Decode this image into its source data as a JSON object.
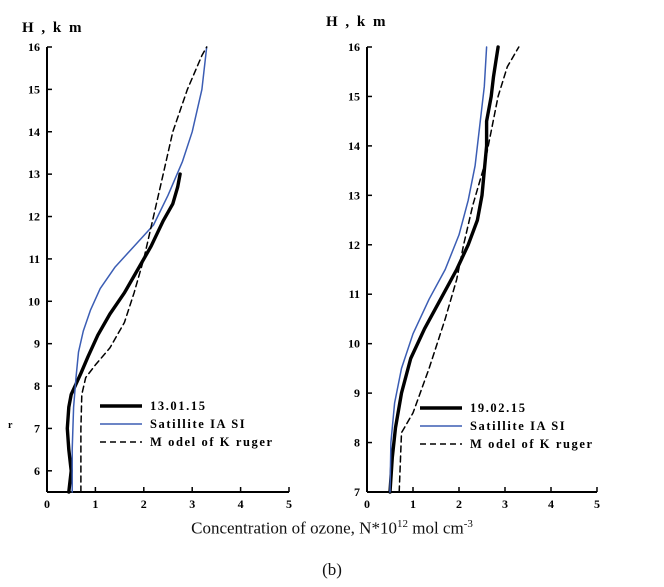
{
  "chart_data": [
    {
      "type": "line",
      "ylabel": "H , k m",
      "xlim": [
        0,
        5
      ],
      "ylim": [
        5.5,
        16
      ],
      "xticks": [
        0,
        1,
        2,
        3,
        4,
        5
      ],
      "yticks": [
        6,
        7,
        8,
        9,
        10,
        11,
        12,
        13,
        14,
        15,
        16
      ],
      "extra_label": "r",
      "legend_position": "bottom-right",
      "grid": false,
      "series": [
        {
          "name": "13.01.15",
          "style": "thick-solid",
          "color": "#000000",
          "x": [
            0.45,
            0.5,
            0.45,
            0.42,
            0.45,
            0.5,
            0.58,
            0.7,
            0.85,
            1.05,
            1.3,
            1.6,
            1.9,
            2.15,
            2.4,
            2.6,
            2.7,
            2.75
          ],
          "y": [
            5.5,
            6.0,
            6.5,
            7.0,
            7.5,
            7.8,
            8.0,
            8.3,
            8.7,
            9.2,
            9.7,
            10.2,
            10.8,
            11.3,
            11.9,
            12.3,
            12.7,
            13.0
          ]
        },
        {
          "name": "Satillite IA SI",
          "style": "thin-solid",
          "color": "#3b5db4",
          "x": [
            0.52,
            0.52,
            0.55,
            0.6,
            0.65,
            0.75,
            0.9,
            1.1,
            1.4,
            1.8,
            2.2,
            2.5,
            2.8,
            3.0,
            3.2,
            3.3
          ],
          "y": [
            5.5,
            6.5,
            7.5,
            8.2,
            8.8,
            9.3,
            9.8,
            10.3,
            10.8,
            11.3,
            11.8,
            12.5,
            13.3,
            14.0,
            15.0,
            16.0
          ]
        },
        {
          "name": "M odel of K ruger",
          "style": "dashed",
          "color": "#000000",
          "x": [
            0.7,
            0.7,
            0.72,
            0.8,
            1.0,
            1.3,
            1.6,
            1.8,
            2.0,
            2.2,
            2.4,
            2.6,
            2.9,
            3.2,
            3.3
          ],
          "y": [
            5.5,
            7.0,
            7.8,
            8.2,
            8.5,
            8.9,
            9.5,
            10.2,
            11.0,
            12.0,
            13.0,
            14.0,
            15.0,
            15.8,
            16.0
          ]
        }
      ]
    },
    {
      "type": "line",
      "ylabel": "H , k m",
      "xlim": [
        0,
        5
      ],
      "ylim": [
        7,
        16
      ],
      "xticks": [
        0,
        1,
        2,
        3,
        4,
        5
      ],
      "yticks": [
        7,
        8,
        9,
        10,
        11,
        12,
        13,
        14,
        15,
        16
      ],
      "legend_position": "bottom-right",
      "grid": false,
      "series": [
        {
          "name": "19.02.15",
          "style": "thick-solid",
          "color": "#000000",
          "x": [
            0.5,
            0.55,
            0.62,
            0.75,
            0.95,
            1.25,
            1.6,
            1.95,
            2.2,
            2.4,
            2.5,
            2.55,
            2.6,
            2.6,
            2.7,
            2.75,
            2.8,
            2.85
          ],
          "y": [
            7.0,
            7.7,
            8.3,
            9.0,
            9.7,
            10.3,
            10.9,
            11.5,
            12.0,
            12.5,
            13.0,
            13.5,
            14.0,
            14.5,
            15.0,
            15.4,
            15.7,
            16.0
          ]
        },
        {
          "name": "Satillite IA SI",
          "style": "thin-solid",
          "color": "#3b5db4",
          "x": [
            0.5,
            0.52,
            0.6,
            0.75,
            1.0,
            1.35,
            1.7,
            2.0,
            2.2,
            2.35,
            2.45,
            2.55,
            2.6
          ],
          "y": [
            7.0,
            8.0,
            8.8,
            9.5,
            10.2,
            10.9,
            11.5,
            12.2,
            12.9,
            13.6,
            14.4,
            15.2,
            16.0
          ]
        },
        {
          "name": "M odel of K ruger",
          "style": "dashed",
          "color": "#000000",
          "x": [
            0.7,
            0.75,
            1.0,
            1.35,
            1.7,
            1.95,
            2.1,
            2.3,
            2.55,
            2.7,
            2.85,
            3.05,
            3.3
          ],
          "y": [
            7.0,
            8.2,
            8.6,
            9.5,
            10.5,
            11.3,
            12.0,
            12.8,
            13.6,
            14.3,
            15.0,
            15.6,
            16.0
          ]
        }
      ]
    }
  ],
  "caption": {
    "x_main": "Concentration of ozone, N*10",
    "x_sup1": "12",
    "x_mid": " mol cm",
    "x_sup2": "-3",
    "panel_label": "(b)"
  }
}
